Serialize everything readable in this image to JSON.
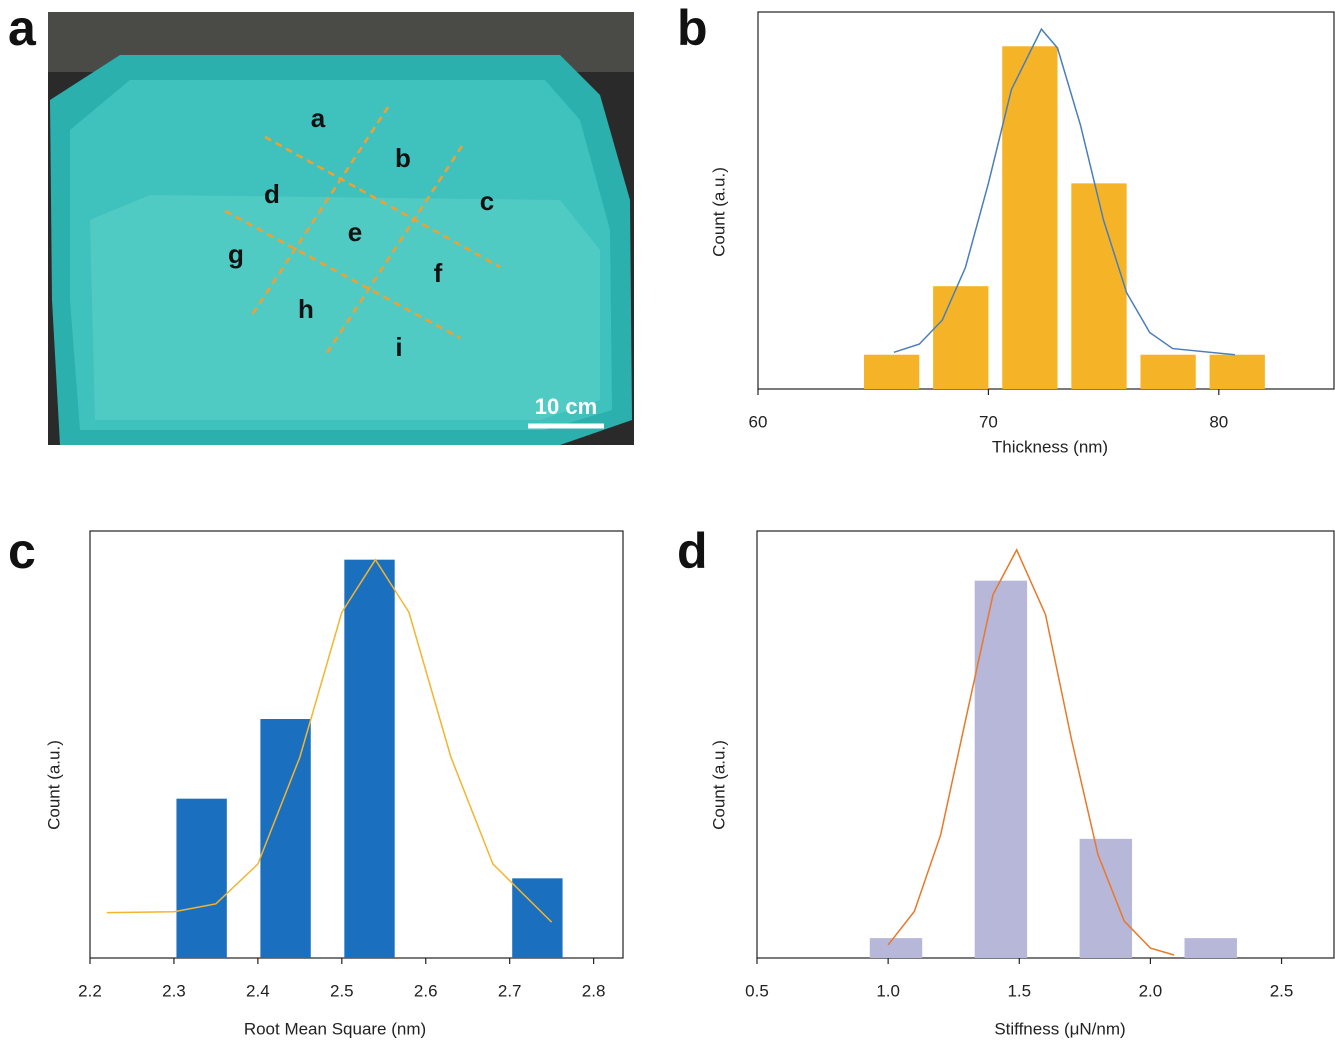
{
  "panel_labels": [
    "a",
    "b",
    "c",
    "d"
  ],
  "photo": {
    "region_labels": [
      "a",
      "b",
      "c",
      "d",
      "e",
      "f",
      "g",
      "h",
      "i"
    ],
    "scale_bar": "10 cm"
  },
  "chart_data": [
    {
      "type": "bar",
      "x_label": "Thickness (nm)",
      "y_label": "Count (a.u.)",
      "x": [
        65.8,
        68.8,
        71.8,
        74.8,
        77.8,
        80.8
      ],
      "values": [
        1,
        3,
        10,
        6,
        1,
        1
      ],
      "color": "#f5b427",
      "fit": {
        "x": [
          65.9,
          67,
          68,
          69,
          70,
          71,
          72.3,
          73,
          74,
          75,
          76,
          77,
          78,
          80.7
        ],
        "values": [
          1.07,
          1.31,
          2.01,
          3.54,
          6.0,
          8.74,
          10.5,
          9.95,
          7.69,
          4.92,
          2.81,
          1.65,
          1.18,
          1.0
        ],
        "color": "#4a7ebb"
      },
      "xlim": [
        60,
        85
      ],
      "ylim": [
        0,
        11
      ],
      "xticks": [
        60,
        70,
        80
      ]
    },
    {
      "type": "bar",
      "x_label": "Root Mean Square (nm)",
      "y_label": "Count (a.u.)",
      "x": [
        2.333,
        2.433,
        2.533,
        2.733
      ],
      "values": [
        2,
        3,
        5,
        1
      ],
      "color": "#1a6fbf",
      "fit": {
        "x": [
          2.22,
          2.3,
          2.35,
          2.4,
          2.45,
          2.5,
          2.54,
          2.58,
          2.63,
          2.68,
          2.75
        ],
        "values": [
          0.57,
          0.58,
          0.68,
          1.18,
          2.52,
          4.34,
          5.0,
          4.34,
          2.52,
          1.18,
          0.45
        ],
        "color": "#f2b530"
      },
      "xlim": [
        2.2,
        2.835
      ],
      "ylim": [
        0,
        5.36
      ],
      "xticks": [
        2.2,
        2.3,
        2.4,
        2.5,
        2.6,
        2.7,
        2.8
      ]
    },
    {
      "type": "bar",
      "x_label": "Stiffness (μN/nm)",
      "y_label": "Count (a.u.)",
      "x": [
        1.03,
        1.43,
        1.83,
        2.23
      ],
      "values": [
        1,
        19,
        6,
        1
      ],
      "color": "#b7b7d9",
      "fit": {
        "x": [
          1.0,
          1.1,
          1.2,
          1.3,
          1.4,
          1.49,
          1.6,
          1.7,
          1.8,
          1.9,
          2.0,
          2.09
        ],
        "values": [
          0.66,
          2.35,
          6.19,
          12.27,
          18.3,
          20.55,
          17.29,
          10.95,
          5.21,
          1.86,
          0.5,
          0.15
        ],
        "color": "#e8792a"
      },
      "xlim": [
        0.5,
        2.7
      ],
      "ylim": [
        0,
        21.5
      ],
      "xticks": [
        0.5,
        {
          "value": 1.0,
          "label": "1.0"
        },
        1.5,
        {
          "value": 2.0,
          "label": "2.0"
        },
        2.5
      ]
    }
  ]
}
